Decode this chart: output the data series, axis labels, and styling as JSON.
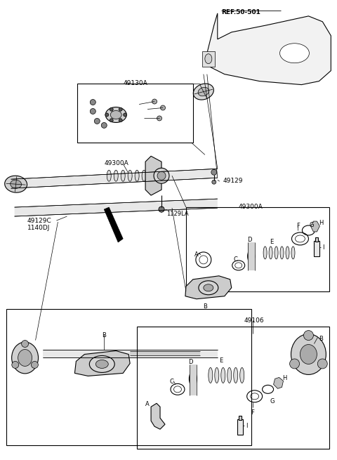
{
  "bg_color": "#ffffff",
  "line_color": "#000000",
  "lw_thin": 0.5,
  "lw_med": 0.8,
  "lw_thick": 1.2,
  "labels": {
    "ref_50_501": "REF.50-501",
    "l49130A": "49130A",
    "l49300A_1": "49300A",
    "l1129LA": "1129LA",
    "l49129": "49129",
    "l49300A_2": "49300A",
    "l49129C": "49129C",
    "l1140DJ": "1140DJ",
    "l49106": "49106"
  }
}
